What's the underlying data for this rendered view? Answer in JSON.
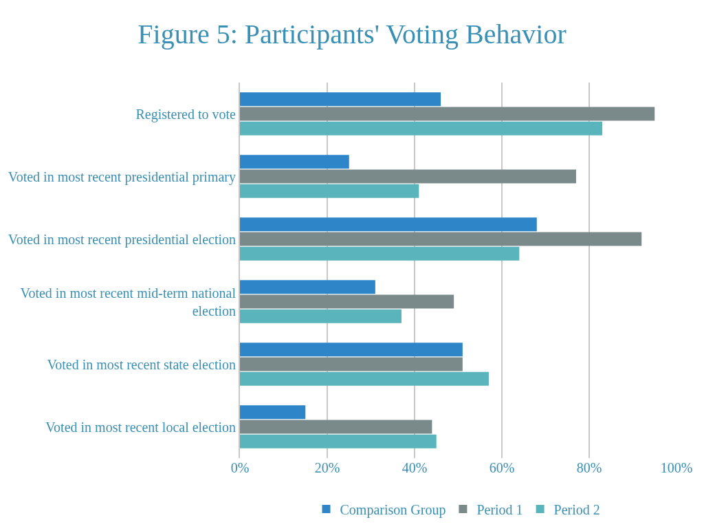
{
  "chart_data": {
    "type": "bar",
    "orientation": "horizontal",
    "title": "Figure 5: Participants' Voting Behavior",
    "categories": [
      "Registered to vote",
      "Voted in most recent presidential primary",
      "Voted in most recent presidential election",
      "Voted in most recent mid-term national election",
      "Voted in most recent state election",
      "Voted in most recent local election"
    ],
    "series": [
      {
        "name": "Comparison Group",
        "color": "#2e86c8",
        "values": [
          46,
          25,
          68,
          31,
          51,
          15
        ]
      },
      {
        "name": "Period 1",
        "color": "#7a8a8a",
        "values": [
          95,
          77,
          92,
          49,
          51,
          44
        ]
      },
      {
        "name": "Period 2",
        "color": "#5ab4bc",
        "values": [
          83,
          41,
          64,
          37,
          57,
          45
        ]
      }
    ],
    "xlim": [
      0,
      100
    ],
    "xticks": [
      {
        "value": 0,
        "label": "0%"
      },
      {
        "value": 20,
        "label": "20%"
      },
      {
        "value": 40,
        "label": "40%"
      },
      {
        "value": 60,
        "label": "60%"
      },
      {
        "value": 80,
        "label": "80%"
      },
      {
        "value": 100,
        "label": "100%"
      }
    ],
    "grid": "x",
    "legend": "bottom"
  }
}
